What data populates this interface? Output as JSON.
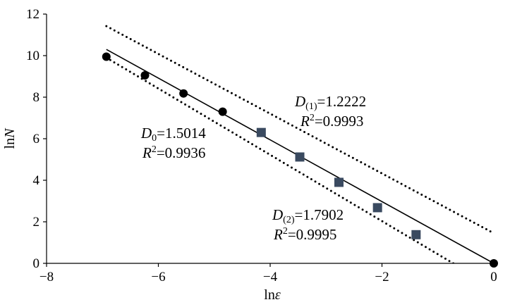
{
  "chart_data": {
    "type": "scatter",
    "xlabel_main": "ln",
    "xlabel_var": "ε",
    "ylabel_main": "ln",
    "ylabel_var": "N",
    "xlim": [
      -8,
      0
    ],
    "ylim": [
      0,
      12
    ],
    "x_ticks": [
      -8,
      -6,
      -4,
      -2,
      0
    ],
    "y_ticks": [
      0,
      2,
      4,
      6,
      8,
      10,
      12
    ],
    "x_tick_labels": [
      "−8",
      "−6",
      "−4",
      "−2",
      "0"
    ],
    "y_tick_labels": [
      "0",
      "2",
      "4",
      "6",
      "8",
      "10",
      "12"
    ],
    "grid": false,
    "series": [
      {
        "marker": "circle",
        "color": "#000000",
        "points": [
          [
            -6.93,
            9.95
          ],
          [
            -6.24,
            9.05
          ],
          [
            -5.55,
            8.18
          ],
          [
            -4.85,
            7.3
          ],
          [
            0,
            0
          ]
        ]
      },
      {
        "marker": "square",
        "color": "#3a4a60",
        "points": [
          [
            -4.16,
            6.3
          ],
          [
            -3.47,
            5.12
          ],
          [
            -2.77,
            3.9
          ],
          [
            -2.08,
            2.68
          ],
          [
            -1.39,
            1.38
          ]
        ]
      }
    ],
    "fit_lines": [
      {
        "style": "solid",
        "color": "#000000",
        "from": [
          -6.93,
          10.3
        ],
        "to": [
          0,
          0
        ]
      },
      {
        "style": "dotted",
        "color": "#000000",
        "from": [
          -6.93,
          11.42
        ],
        "to": [
          0,
          1.45
        ]
      },
      {
        "style": "dotted",
        "color": "#000000",
        "from": [
          -6.93,
          9.9
        ],
        "to": [
          -0.6,
          -0.2
        ]
      }
    ],
    "annotations": [
      {
        "var": "D",
        "sub": "0",
        "value": "=1.5014",
        "r2": "=0.9936"
      },
      {
        "var": "D",
        "sub": "(1)",
        "value": "=1.2222",
        "r2": "=0.9993"
      },
      {
        "var": "D",
        "sub": "(2)",
        "value": "=1.7902",
        "r2": "=0.9995"
      }
    ],
    "r2_var": "R",
    "r2_sup": "2"
  }
}
